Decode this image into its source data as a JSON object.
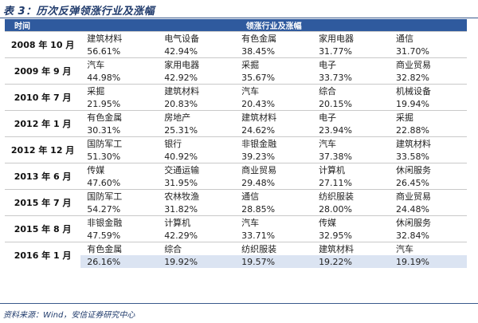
{
  "title": "表 3：历次反弹领涨行业及涨幅",
  "header": {
    "time_label": "时间",
    "industry_label": "领涨行业及涨幅"
  },
  "rows": [
    {
      "date": "2008 年 10 月",
      "industries": [
        "建筑材料",
        "电气设备",
        "有色金属",
        "家用电器",
        "通信"
      ],
      "values": [
        "56.61%",
        "42.94%",
        "38.45%",
        "31.77%",
        "31.70%"
      ]
    },
    {
      "date": "2009 年 9 月",
      "industries": [
        "汽车",
        "家用电器",
        "采掘",
        "电子",
        "商业贸易"
      ],
      "values": [
        "44.98%",
        "42.92%",
        "35.67%",
        "33.73%",
        "32.82%"
      ]
    },
    {
      "date": "2010 年 7 月",
      "industries": [
        "采掘",
        "建筑材料",
        "汽车",
        "综合",
        "机械设备"
      ],
      "values": [
        "21.95%",
        "20.83%",
        "20.43%",
        "20.15%",
        "19.94%"
      ]
    },
    {
      "date": "2012 年 1 月",
      "industries": [
        "有色金属",
        "房地产",
        "建筑材料",
        "电子",
        "采掘"
      ],
      "values": [
        "30.31%",
        "25.31%",
        "24.62%",
        "23.94%",
        "22.88%"
      ]
    },
    {
      "date": "2012 年 12 月",
      "industries": [
        "国防军工",
        "银行",
        "非银金融",
        "汽车",
        "建筑材料"
      ],
      "values": [
        "51.30%",
        "40.92%",
        "39.23%",
        "37.38%",
        "33.58%"
      ]
    },
    {
      "date": "2013 年 6 月",
      "industries": [
        "传媒",
        "交通运输",
        "商业贸易",
        "计算机",
        "休闲服务"
      ],
      "values": [
        "47.60%",
        "31.95%",
        "29.48%",
        "27.11%",
        "26.45%"
      ]
    },
    {
      "date": "2015 年 7 月",
      "industries": [
        "国防军工",
        "农林牧渔",
        "通信",
        "纺织服装",
        "商业贸易"
      ],
      "values": [
        "54.27%",
        "31.82%",
        "28.85%",
        "28.00%",
        "24.48%"
      ]
    },
    {
      "date": "2015 年 8 月",
      "industries": [
        "非银金融",
        "计算机",
        "汽车",
        "传媒",
        "休闲服务"
      ],
      "values": [
        "47.59%",
        "42.29%",
        "33.71%",
        "32.95%",
        "32.84%"
      ]
    },
    {
      "date": "2016 年 1 月",
      "industries": [
        "有色金属",
        "综合",
        "纺织服装",
        "建筑材料",
        "汽车"
      ],
      "values": [
        "26.16%",
        "19.92%",
        "19.57%",
        "19.22%",
        "19.19%"
      ]
    }
  ],
  "source": "资料来源：Wind，安信证券研究中心",
  "colors": {
    "header_bg": "#2f5a9e",
    "highlight_bg": "#dbe4f2",
    "title": "#1f3a6b"
  }
}
